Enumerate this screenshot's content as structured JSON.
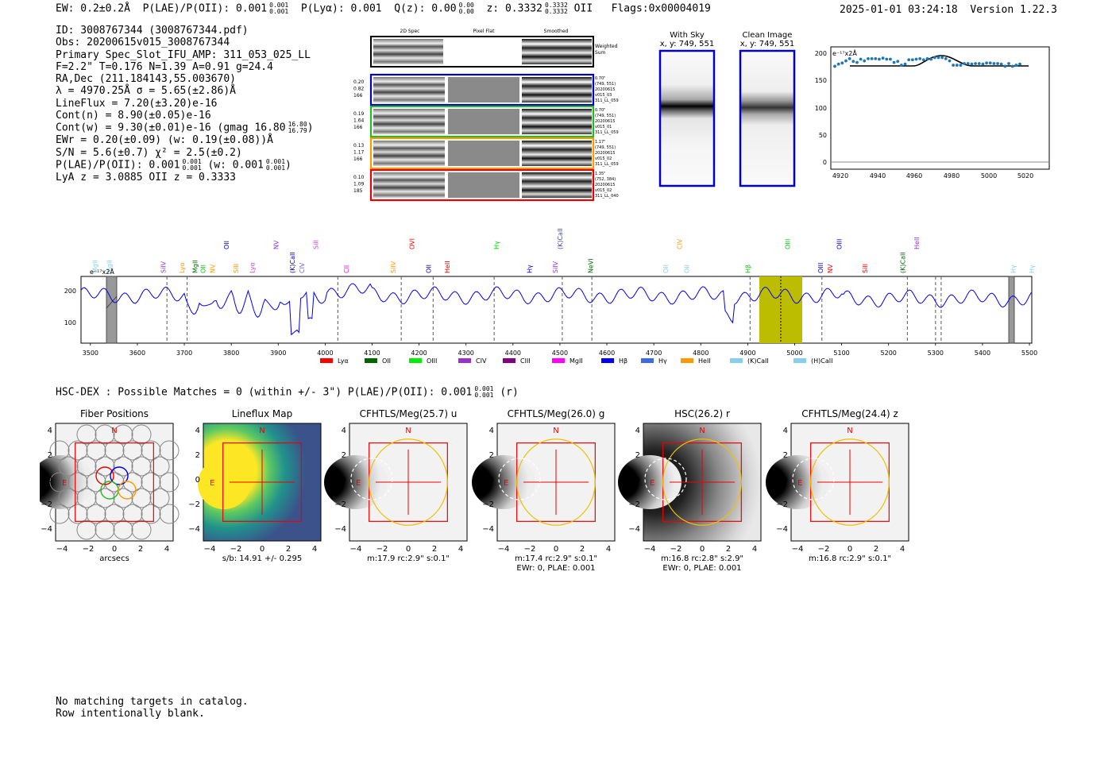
{
  "header": {
    "ew": "EW: 0.2±0.2Å",
    "plae": "P(LAE)/P(OII): 0.001",
    "plae_sup": "0.001",
    "plae_sub": "0.001",
    "plya": "P(Lyα): 0.001",
    "qz": "Q(z): 0.00",
    "qz_sup": "0.00",
    "qz_sub": "0.00",
    "z": "z: 0.3332",
    "z_sup": "0.3332",
    "z_sub": "0.3332",
    "z_line": "OII",
    "flags": "Flags:0x00004019",
    "datetime": "2025-01-01 03:24:18",
    "version": "Version 1.22.3"
  },
  "info": [
    "ID: 3008767344 (3008767344.pdf)",
    "Obs: 20200615v015_3008767344",
    "Primary Spec_Slot_IFU_AMP: 311_053_025_LL",
    "F=2.2\"  T=0.176  N=1.39  A=0.91  g=24.4",
    "RA,Dec (211.184143,55.003670)",
    "λ = 4970.25Å   σ = 5.65(±2.86)Å",
    "LineFlux = 7.20(±3.20)e-16",
    "Cont(n) = 8.90(±0.05)e-16",
    "Cont(w) = 9.30(±0.01)e-16 (gmag 16.80",
    "EWr = 0.20(±0.09) (w: 0.19(±0.08))Å",
    "S/N = 5.6(±0.7)  χ² = 2.5(±0.2)",
    "P(LAE)/P(OII): 0.001",
    "LyA z = 3.0885  OII z = 0.3333"
  ],
  "info_extras": {
    "gmag_sup": "16.80",
    "gmag_sub": "16.79",
    "plae_sup": "0.001",
    "plae_sub": "0.001",
    "plae_w": "(w: 0.001",
    "plae_w_sup": "0.001",
    "plae_w_sub": "0.001"
  },
  "cutouts": {
    "col_headers": [
      "2D Spec",
      "Pixel Flat",
      "Smoothed"
    ],
    "weighted_label": [
      "Weighted",
      "Sum"
    ],
    "rows": [
      {
        "left": [
          "0.20",
          "0.82",
          "166"
        ],
        "right": [
          "0.70\"",
          "(749, 551)",
          "20200615",
          "v015_03",
          "311_LL_059"
        ],
        "color": "#0000cc"
      },
      {
        "left": [
          "0.19",
          "1.64",
          "166"
        ],
        "right": [
          "0.70\"",
          "(749, 551)",
          "20200615",
          "v015_01",
          "311_LL_059"
        ],
        "color": "#22bb22"
      },
      {
        "left": [
          "0.13",
          "1.17",
          "166"
        ],
        "right": [
          "1.17\"",
          "(749, 551)",
          "20200615",
          "v015_02",
          "311_LL_059"
        ],
        "color": "#ff9900"
      },
      {
        "left": [
          "0.10",
          "1.09",
          "185"
        ],
        "right": [
          "1.35\"",
          "(752, 384)",
          "20200615",
          "v015_02",
          "311_LL_040"
        ],
        "color": "#ee0000"
      }
    ]
  },
  "sky_panels": {
    "with_sky": [
      "With Sky",
      "x, y: 749, 551"
    ],
    "clean": [
      "Clean Image",
      "x, y: 749, 551"
    ]
  },
  "zoom_plot": {
    "unit_label": "e⁻¹⁷x2Å",
    "yticks": [
      "200",
      "150",
      "100",
      "50",
      "0"
    ],
    "xticks": [
      "4920",
      "4940",
      "4960",
      "4980",
      "5000",
      "5020"
    ]
  },
  "full_spectrum": {
    "unit_label": "e⁻¹⁷x2Å",
    "yticks": [
      "200",
      "100"
    ],
    "xticks": [
      "3500",
      "3600",
      "3700",
      "3800",
      "3900",
      "4000",
      "4100",
      "4200",
      "4300",
      "4400",
      "4500",
      "4600",
      "4700",
      "4800",
      "4900",
      "5000",
      "5100",
      "5200",
      "5300",
      "5400",
      "5500"
    ],
    "line_labels": [
      {
        "t": "MgII",
        "c": "#87ceeb"
      },
      {
        "t": "MgII",
        "c": "#87ceeb"
      },
      {
        "t": "SiIV",
        "c": "#9932cc"
      },
      {
        "t": "Lyα",
        "c": "#ff9900"
      },
      {
        "t": "MgII",
        "c": "#006400"
      },
      {
        "t": "OII",
        "c": "#00cc00"
      },
      {
        "t": "NV",
        "c": "#ff9900"
      },
      {
        "t": "OII",
        "c": "#0000cc"
      },
      {
        "t": "SiII",
        "c": "#ff9900"
      },
      {
        "t": "Lyα",
        "c": "#cc44cc"
      },
      {
        "t": "NV",
        "c": "#9932cc"
      },
      {
        "t": "(K)CaII",
        "c": "#0000aa"
      },
      {
        "t": "CIV",
        "c": "#6666cc"
      },
      {
        "t": "SiII",
        "c": "#cc44cc"
      },
      {
        "t": "CII",
        "c": "#ff00ff"
      },
      {
        "t": "SiIV",
        "c": "#ff9900"
      },
      {
        "t": "OVI",
        "c": "#ff0000"
      },
      {
        "t": "OII",
        "c": "#0000cc"
      },
      {
        "t": "HeII",
        "c": "#cc0000"
      },
      {
        "t": "Hγ",
        "c": "#00cc00"
      },
      {
        "t": "Hγ",
        "c": "#0000cc"
      },
      {
        "t": "SiIV",
        "c": "#9932cc"
      },
      {
        "t": "(K)CaII",
        "c": "#4444aa"
      },
      {
        "t": "NeVI",
        "c": "#006400"
      },
      {
        "t": "OII",
        "c": "#87ceeb"
      },
      {
        "t": "CIV",
        "c": "#ff9900"
      },
      {
        "t": "OII",
        "c": "#87ceeb"
      },
      {
        "t": "Hβ",
        "c": "#00cc00"
      },
      {
        "t": "OIII",
        "c": "#00cc00"
      },
      {
        "t": "OIII",
        "c": "#0000cc"
      },
      {
        "t": "NV",
        "c": "#ff0000"
      },
      {
        "t": "OIII",
        "c": "#0000cc"
      },
      {
        "t": "SiII",
        "c": "#ff0000"
      },
      {
        "t": "(K)CaII",
        "c": "#006400"
      },
      {
        "t": "HeII",
        "c": "#9932cc"
      },
      {
        "t": "Hγ",
        "c": "#87ceeb"
      },
      {
        "t": "Hγ",
        "c": "#87ceeb"
      }
    ],
    "legend": [
      {
        "label": "Lyα",
        "color": "#ff0000"
      },
      {
        "label": "OII",
        "color": "#006400"
      },
      {
        "label": "OIII",
        "color": "#00ee00"
      },
      {
        "label": "CIV",
        "color": "#9932cc"
      },
      {
        "label": "CIII",
        "color": "#800080"
      },
      {
        "label": "MgII",
        "color": "#ff00ff"
      },
      {
        "label": "Hβ",
        "color": "#0000ff"
      },
      {
        "label": "Hγ",
        "color": "#4169e1"
      },
      {
        "label": "HeII",
        "color": "#ff9900"
      },
      {
        "label": "(K)CaII",
        "color": "#87ceeb"
      },
      {
        "label": "(H)CaII",
        "color": "#87ceeb"
      }
    ]
  },
  "hsc_line": "HSC-DEX : Possible Matches = 0 (within +/- 3\")  P(LAE)/P(OII): 0.001",
  "hsc_line_sup": "0.001",
  "hsc_line_sub": "0.001",
  "hsc_line_tail": "(r)",
  "imaging": [
    {
      "title": "Fiber Positions",
      "cap1": "arcsecs",
      "cap2": ""
    },
    {
      "title": "Lineflux Map",
      "cap1": "s/b: 14.91 +/- 0.295",
      "cap2": ""
    },
    {
      "title": "CFHTLS/Meg(25.7) u",
      "cap1": "m:17.9 rc:2.9\"  s:0.1\"",
      "cap2": ""
    },
    {
      "title": "CFHTLS/Meg(26.0) g",
      "cap1": "m:17.4 rc:2.9\"  s:0.1\"",
      "cap2": "EWr: 0, PLAE: 0.001"
    },
    {
      "title": "HSC(26.2) r",
      "cap1": "m:16.8  rc:2.8\"  s:2.9\"",
      "cap2": "EWr: 0, PLAE: 0.001"
    },
    {
      "title": "CFHTLS/Meg(24.4) z",
      "cap1": "m:16.8 rc:2.9\"  s:0.1\"",
      "cap2": ""
    }
  ],
  "imaging_ticks": {
    "y": [
      "4",
      "2",
      "0",
      "−2",
      "−4"
    ],
    "x": [
      "−4",
      "−2",
      "0",
      "2",
      "4"
    ],
    "north": "N",
    "east": "E"
  },
  "footer": [
    "No matching targets in catalog.",
    "Row intentionally blank."
  ]
}
